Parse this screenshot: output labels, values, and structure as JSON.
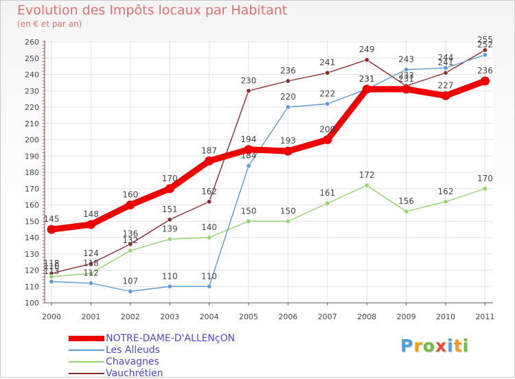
{
  "chart_data": {
    "type": "line",
    "title": "Evolution des Impôts locaux par Habitant",
    "subtitle": "(en € et par an)",
    "x": [
      2000,
      2001,
      2002,
      2003,
      2004,
      2005,
      2006,
      2007,
      2008,
      2009,
      2010,
      2011
    ],
    "ylim": [
      100,
      260
    ],
    "yticks": [
      100,
      110,
      120,
      130,
      140,
      150,
      160,
      170,
      180,
      190,
      200,
      210,
      220,
      230,
      240,
      250,
      260
    ],
    "series": [
      {
        "name": "Vauchrétien",
        "color": "#8b2a2a",
        "values": [
          118,
          124,
          136,
          151,
          162,
          230,
          236,
          241,
          249,
          233,
          241,
          255
        ]
      },
      {
        "name": "Chavagnes",
        "color": "#92d36a",
        "values": [
          116,
          118,
          132,
          139,
          140,
          150,
          150,
          161,
          172,
          156,
          162,
          170
        ]
      },
      {
        "name": "Les Alleuds",
        "color": "#5a9bd5",
        "values": [
          113,
          112,
          107,
          110,
          110,
          184,
          220,
          222,
          231,
          243,
          244,
          252
        ]
      },
      {
        "name": "NOTRE-DAME-D'ALLENçON",
        "color": "#ee0000",
        "values": [
          145,
          148,
          160,
          170,
          187,
          194,
          193,
          200,
          231,
          231,
          227,
          236
        ]
      }
    ],
    "legend": [
      {
        "name": "NOTRE-DAME-D'ALLENçON",
        "color": "#ee0000"
      },
      {
        "name": "Les Alleuds",
        "color": "#5a9bd5"
      },
      {
        "name": "Chavagnes",
        "color": "#92d36a"
      },
      {
        "name": "Vauchrétien",
        "color": "#8b2a2a"
      }
    ]
  },
  "logo": {
    "text": "Proxiti",
    "colors": [
      "#4aa3df",
      "#f39c12",
      "#6cbf3c",
      "#e74c3c",
      "#4aa3df",
      "#f39c12",
      "#6cbf3c"
    ]
  }
}
